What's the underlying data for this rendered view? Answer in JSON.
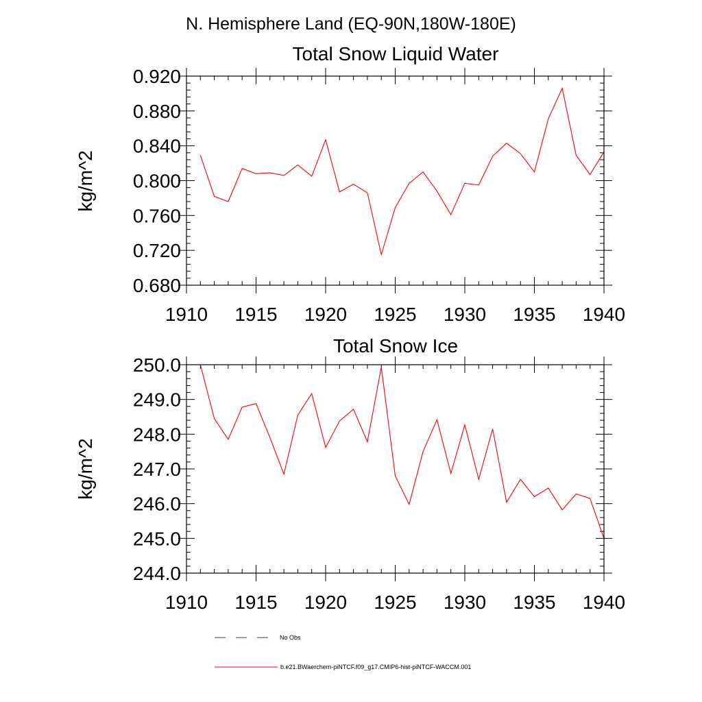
{
  "figure": {
    "title": "N. Hemisphere Land (EQ-90N,180W-180E)"
  },
  "chart_data": [
    {
      "type": "line",
      "title": "Total Snow Liquid Water",
      "xlabel": "",
      "ylabel": "kg/m^2",
      "xlim": [
        1910,
        1940
      ],
      "ylim": [
        0.68,
        0.92
      ],
      "x_ticks": [
        1910,
        1915,
        1920,
        1925,
        1930,
        1935,
        1940
      ],
      "x_tick_labels": [
        "1910",
        "1915",
        "1920",
        "1925",
        "1930",
        "1935",
        "1940"
      ],
      "y_ticks": [
        0.68,
        0.72,
        0.76,
        0.8,
        0.84,
        0.88,
        0.92
      ],
      "y_tick_labels": [
        "0.680",
        "0.720",
        "0.760",
        "0.800",
        "0.840",
        "0.880",
        "0.920"
      ],
      "y_minor_step": 0.008,
      "grid": false,
      "series": [
        {
          "name": "b.e21.BWaerchem-piNTCF.f09_g17.CMIP6-hist-piNTCF-WACCM.001",
          "color": "#ff0000",
          "x": [
            1911,
            1912,
            1913,
            1914,
            1915,
            1916,
            1917,
            1918,
            1919,
            1920,
            1921,
            1922,
            1923,
            1924,
            1925,
            1926,
            1927,
            1928,
            1929,
            1930,
            1931,
            1932,
            1933,
            1934,
            1935,
            1936,
            1937,
            1938,
            1939,
            1940
          ],
          "y": [
            0.829,
            0.782,
            0.776,
            0.814,
            0.808,
            0.809,
            0.806,
            0.818,
            0.805,
            0.847,
            0.787,
            0.796,
            0.786,
            0.715,
            0.769,
            0.797,
            0.81,
            0.788,
            0.761,
            0.797,
            0.795,
            0.828,
            0.843,
            0.831,
            0.81,
            0.871,
            0.906,
            0.829,
            0.807,
            0.833
          ]
        }
      ]
    },
    {
      "type": "line",
      "title": "Total Snow Ice",
      "xlabel": "",
      "ylabel": "kg/m^2",
      "xlim": [
        1910,
        1940
      ],
      "ylim": [
        244.0,
        250.0
      ],
      "x_ticks": [
        1910,
        1915,
        1920,
        1925,
        1930,
        1935,
        1940
      ],
      "x_tick_labels": [
        "1910",
        "1915",
        "1920",
        "1925",
        "1930",
        "1935",
        "1940"
      ],
      "y_ticks": [
        244.0,
        245.0,
        246.0,
        247.0,
        248.0,
        249.0,
        250.0
      ],
      "y_tick_labels": [
        "244.0",
        "245.0",
        "246.0",
        "247.0",
        "248.0",
        "249.0",
        "250.0"
      ],
      "y_minor_step": 0.2,
      "grid": false,
      "series": [
        {
          "name": "b.e21.BWaerchem-piNTCF.f09_g17.CMIP6-hist-piNTCF-WACCM.001",
          "color": "#ff0000",
          "x": [
            1911,
            1912,
            1913,
            1914,
            1915,
            1916,
            1917,
            1918,
            1919,
            1920,
            1921,
            1922,
            1923,
            1924,
            1925,
            1926,
            1927,
            1928,
            1929,
            1930,
            1931,
            1932,
            1933,
            1934,
            1935,
            1936,
            1937,
            1938,
            1939,
            1940
          ],
          "y": [
            250.0,
            248.45,
            247.85,
            248.78,
            248.88,
            247.9,
            246.85,
            248.55,
            249.17,
            247.62,
            248.38,
            248.72,
            247.78,
            249.93,
            246.8,
            245.98,
            247.5,
            248.42,
            246.87,
            248.27,
            246.7,
            248.15,
            246.04,
            246.7,
            246.2,
            246.45,
            245.82,
            246.28,
            246.15,
            245.0
          ]
        }
      ]
    }
  ],
  "legend": {
    "placement": "bottom-left",
    "items": [
      {
        "label": "No Obs",
        "color": "#3333aa",
        "style": "dashed"
      },
      {
        "label": "b.e21.BWaerchem-piNTCF.f09_g17.CMIP6-hist-piNTCF-WACCM.001",
        "color": "#ff0000",
        "style": "solid"
      }
    ]
  }
}
